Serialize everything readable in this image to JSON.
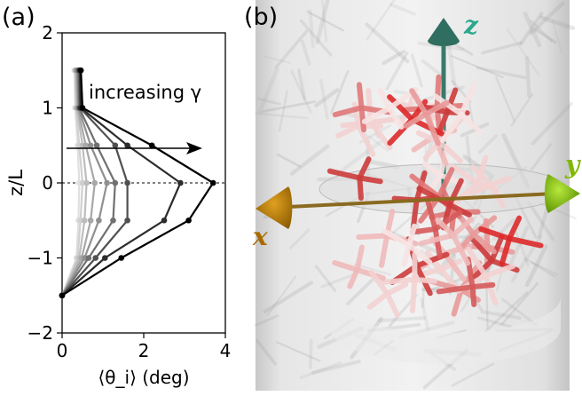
{
  "panels": {
    "a": {
      "label": "(a)"
    },
    "b": {
      "label": "(b)"
    }
  },
  "chart_data": {
    "type": "line",
    "panel": "(a)",
    "xlabel": "⟨θ_i⟩ (deg)",
    "ylabel": "z/L",
    "xlim": [
      0,
      4
    ],
    "ylim": [
      -2,
      2
    ],
    "xticks": [
      "0",
      "2",
      "4"
    ],
    "yticks": [
      "−2",
      "−1",
      "0",
      "1",
      "2"
    ],
    "annotation": "increasing γ",
    "reference_line_y": 0,
    "z": [
      -1.5,
      -1.0,
      -0.5,
      0.0,
      0.5,
      1.0,
      1.5
    ],
    "series": [
      {
        "values": [
          0.0,
          0.35,
          0.4,
          0.42,
          0.38,
          0.32,
          0.3
        ],
        "color": "#e0e0e0"
      },
      {
        "values": [
          0.0,
          0.38,
          0.45,
          0.5,
          0.42,
          0.34,
          0.32
        ],
        "color": "#d0d0d0"
      },
      {
        "values": [
          0.0,
          0.42,
          0.55,
          0.6,
          0.5,
          0.36,
          0.33
        ],
        "color": "#bdbdbd"
      },
      {
        "values": [
          0.0,
          0.48,
          0.7,
          0.8,
          0.58,
          0.38,
          0.35
        ],
        "color": "#a8a8a8"
      },
      {
        "values": [
          0.0,
          0.55,
          0.9,
          1.1,
          0.7,
          0.4,
          0.37
        ],
        "color": "#909090"
      },
      {
        "values": [
          0.0,
          0.65,
          1.25,
          1.3,
          0.85,
          0.42,
          0.4
        ],
        "color": "#707070"
      },
      {
        "values": [
          0.0,
          0.82,
          1.6,
          1.6,
          1.3,
          0.44,
          0.42
        ],
        "color": "#505050"
      },
      {
        "values": [
          0.0,
          1.05,
          2.5,
          2.9,
          1.6,
          0.46,
          0.44
        ],
        "color": "#2c2c2c"
      },
      {
        "values": [
          0.0,
          1.45,
          3.1,
          3.7,
          2.2,
          0.5,
          0.46
        ],
        "color": "#000000"
      }
    ]
  },
  "render3d": {
    "axis_labels": {
      "x": "x",
      "y": "y",
      "z": "z"
    },
    "axis_colors": {
      "x": "#b07a00",
      "y": "#7fb800",
      "z": "#2f6e60"
    }
  }
}
